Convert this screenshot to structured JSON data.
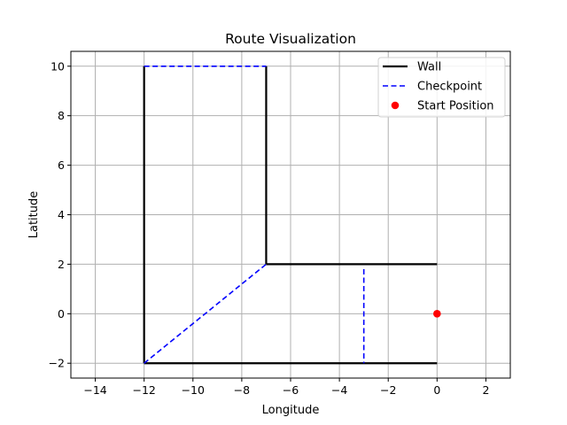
{
  "chart_data": {
    "type": "line",
    "title": "Route Visualization",
    "xlabel": "Longitude",
    "ylabel": "Latitude",
    "xlim": [
      -15,
      3
    ],
    "ylim": [
      -2.6,
      10.6
    ],
    "x_ticks": [
      -14,
      -12,
      -10,
      -8,
      -6,
      -4,
      -2,
      0,
      2
    ],
    "y_ticks": [
      -2,
      0,
      2,
      4,
      6,
      8,
      10
    ],
    "grid": true,
    "legend_position": "top-right",
    "series": [
      {
        "name": "Wall",
        "kind": "line",
        "style": "solid",
        "color": "#000000",
        "segments": [
          [
            [
              -12,
              -2
            ],
            [
              -12,
              10
            ]
          ],
          [
            [
              -7,
              10
            ],
            [
              -7,
              2
            ]
          ],
          [
            [
              -7,
              2
            ],
            [
              0,
              2
            ]
          ],
          [
            [
              -12,
              -2
            ],
            [
              0,
              -2
            ]
          ]
        ]
      },
      {
        "name": "Checkpoint",
        "kind": "line",
        "style": "dashed",
        "color": "#0000ff",
        "segments": [
          [
            [
              -12,
              10
            ],
            [
              -7,
              10
            ]
          ],
          [
            [
              -12,
              -2
            ],
            [
              -7,
              2
            ]
          ],
          [
            [
              -3,
              1.8
            ],
            [
              -3,
              -2
            ]
          ]
        ]
      },
      {
        "name": "Start Position",
        "kind": "scatter",
        "color": "#ff0000",
        "points": [
          [
            0,
            0
          ]
        ]
      }
    ]
  }
}
